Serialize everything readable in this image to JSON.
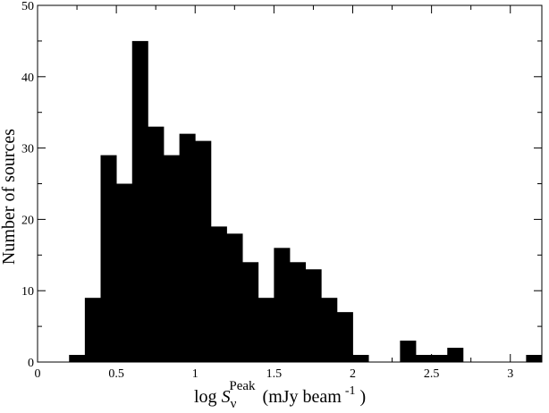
{
  "chart_data": {
    "type": "bar",
    "title": "",
    "xlabel": {
      "prefix": "log ",
      "symbol": "S",
      "subscript": "ν",
      "superscript": "Peak",
      "units_prefix": "(mJy beam",
      "units_exponent": "-1",
      "units_suffix": " )"
    },
    "ylabel": "Number of sources",
    "xlim": [
      0,
      3.2
    ],
    "ylim": [
      0,
      50
    ],
    "bin_width": 0.1,
    "x_ticks": [
      "0",
      "0.5",
      "1",
      "1.5",
      "2",
      "2.5",
      "3"
    ],
    "x_tick_values": [
      0,
      0.5,
      1,
      1.5,
      2,
      2.5,
      3
    ],
    "y_ticks": [
      "0",
      "10",
      "20",
      "30",
      "40",
      "50"
    ],
    "y_tick_values": [
      0,
      10,
      20,
      30,
      40,
      50
    ],
    "bin_starts": [
      0.2,
      0.3,
      0.4,
      0.5,
      0.6,
      0.7,
      0.8,
      0.9,
      1.0,
      1.1,
      1.2,
      1.3,
      1.4,
      1.5,
      1.6,
      1.7,
      1.8,
      1.9,
      2.0,
      2.1,
      2.2,
      2.3,
      2.4,
      2.5,
      2.6,
      2.7,
      2.8,
      2.9,
      3.0,
      3.1
    ],
    "values": [
      1,
      9,
      29,
      25,
      45,
      33,
      29,
      32,
      31,
      19,
      18,
      14,
      9,
      16,
      14,
      13,
      9,
      7,
      1,
      0,
      0,
      3,
      1,
      1,
      2,
      0,
      0,
      0,
      0,
      1
    ],
    "bar_color": "#000000",
    "grid": false,
    "legend": "none"
  }
}
